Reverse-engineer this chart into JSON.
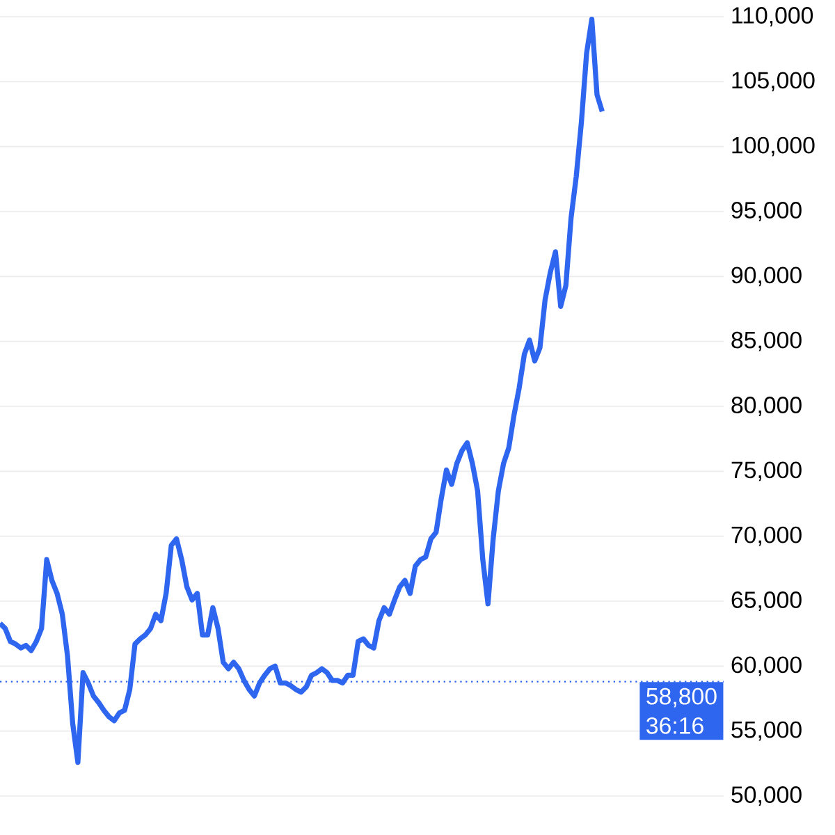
{
  "chart_data": {
    "type": "line",
    "categories": [
      null,
      null,
      null,
      null,
      null,
      null,
      null,
      null,
      null,
      null,
      null,
      null,
      null,
      null,
      null,
      null,
      null,
      null,
      null,
      null,
      null,
      null,
      null,
      null,
      null,
      null,
      null,
      null,
      null,
      null,
      null,
      null,
      null,
      null,
      null,
      null,
      null,
      null,
      null,
      null,
      null,
      null,
      null,
      null,
      null,
      null,
      null,
      null,
      null,
      null,
      null,
      null,
      null,
      null,
      null,
      null,
      null,
      null,
      null,
      null,
      null,
      null,
      null,
      null,
      null,
      null,
      null,
      null,
      null,
      null,
      null,
      null,
      null,
      null,
      null,
      null,
      null,
      null,
      null,
      null,
      null,
      null,
      null,
      null,
      null,
      null,
      null,
      null,
      null,
      null,
      null,
      null,
      null,
      null,
      null,
      null,
      null,
      null,
      null,
      null,
      null,
      null,
      null,
      null,
      null,
      null,
      null,
      null,
      null,
      null,
      null,
      null,
      null,
      null,
      null,
      null,
      null
    ],
    "values": [
      63300,
      62900,
      61900,
      61700,
      61400,
      61600,
      61200,
      61900,
      62900,
      68200,
      66600,
      65600,
      64000,
      60800,
      55600,
      52600,
      59500,
      58700,
      57700,
      57200,
      56600,
      56100,
      55800,
      56400,
      56600,
      58200,
      61700,
      62100,
      62400,
      62900,
      64000,
      63500,
      65600,
      69300,
      69800,
      68200,
      66100,
      65100,
      65600,
      62400,
      62400,
      64500,
      62900,
      60300,
      59800,
      60300,
      59800,
      58900,
      58200,
      57700,
      58700,
      59300,
      59800,
      60000,
      58700,
      58700,
      58500,
      58200,
      58000,
      58400,
      59300,
      59500,
      59800,
      59500,
      58900,
      58900,
      58700,
      59300,
      59300,
      61900,
      62100,
      61600,
      61400,
      63500,
      64500,
      64000,
      65100,
      66100,
      66600,
      65600,
      67700,
      68200,
      68400,
      69800,
      70300,
      72900,
      75100,
      74000,
      75600,
      76600,
      77200,
      75600,
      73500,
      68200,
      64800,
      69800,
      73500,
      75600,
      76800,
      79300,
      81400,
      84000,
      85100,
      83500,
      84500,
      88200,
      90300,
      91900,
      87700,
      89300,
      94500,
      97700,
      101900,
      107200,
      109800,
      104000,
      102700
    ],
    "color": "#2f66f0",
    "ylim": [
      50000,
      110000
    ],
    "yticks": [
      {
        "value": 50000,
        "label": "50,000"
      },
      {
        "value": 55000,
        "label": "55,000"
      },
      {
        "value": 60000,
        "label": "60,000"
      },
      {
        "value": 65000,
        "label": "65,000"
      },
      {
        "value": 70000,
        "label": "70,000"
      },
      {
        "value": 75000,
        "label": "75,000"
      },
      {
        "value": 80000,
        "label": "80,000"
      },
      {
        "value": 85000,
        "label": "85,000"
      },
      {
        "value": 90000,
        "label": "90,000"
      },
      {
        "value": 95000,
        "label": "95,000"
      },
      {
        "value": 100000,
        "label": "100,000"
      },
      {
        "value": 105000,
        "label": "105,000"
      },
      {
        "value": 110000,
        "label": "110,000"
      }
    ],
    "grid": "y",
    "tick_labels": "y",
    "ref_lines": [
      {
        "axis": "y",
        "value": 58800,
        "label": "58,800",
        "color": "#2f66f0",
        "line_style": "dotted"
      }
    ],
    "annotations": [
      "36:16"
    ]
  }
}
